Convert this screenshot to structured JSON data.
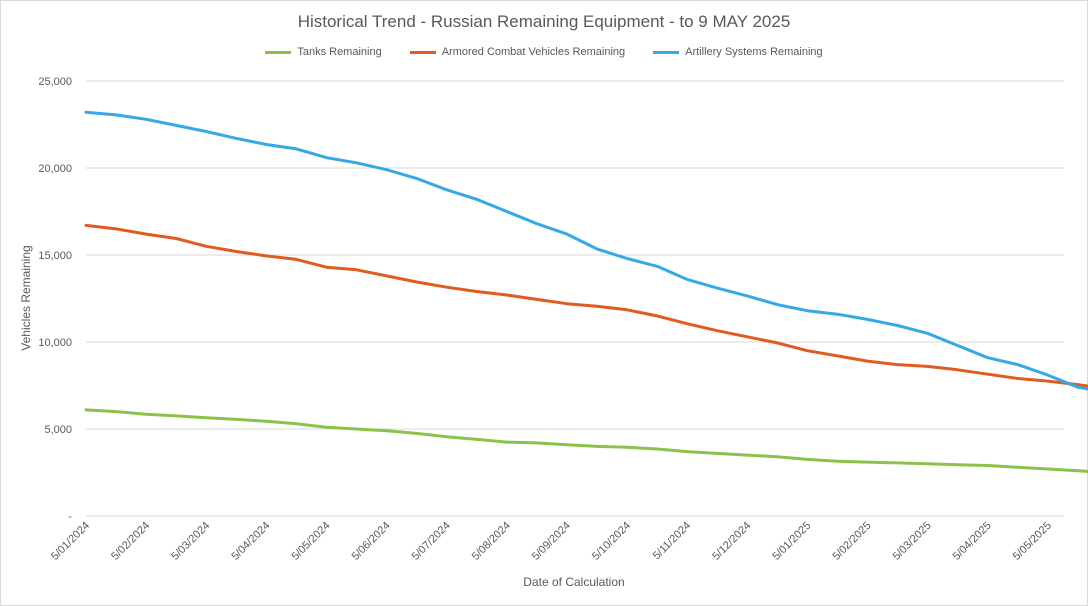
{
  "chart_data": {
    "type": "line",
    "title": "Historical Trend - Russian Remaining Equipment - to 9 MAY 2025",
    "xlabel": "Date of Calculation",
    "ylabel": "Vehicles Remaining",
    "ylim": [
      0,
      25000
    ],
    "yticks": [
      {
        "value": 0,
        "label": "-"
      },
      {
        "value": 5000,
        "label": "5,000"
      },
      {
        "value": 10000,
        "label": "10,000"
      },
      {
        "value": 15000,
        "label": "15,000"
      },
      {
        "value": 20000,
        "label": "20,000"
      },
      {
        "value": 25000,
        "label": "25,000"
      }
    ],
    "xticks": [
      "5/01/2024",
      "5/02/2024",
      "5/03/2024",
      "5/04/2024",
      "5/05/2024",
      "5/06/2024",
      "5/07/2024",
      "5/08/2024",
      "5/09/2024",
      "5/10/2024",
      "5/11/2024",
      "5/12/2024",
      "5/01/2025",
      "5/02/2025",
      "5/03/2025",
      "5/04/2025",
      "5/05/2025"
    ],
    "grid": true,
    "legend_position": "top",
    "series": [
      {
        "name": "Tanks Remaining",
        "color": "#8bc34a",
        "points": [
          [
            0,
            6100
          ],
          [
            0.5,
            6000
          ],
          [
            1,
            5850
          ],
          [
            1.5,
            5750
          ],
          [
            2,
            5650
          ],
          [
            2.5,
            5550
          ],
          [
            3,
            5450
          ],
          [
            3.5,
            5300
          ],
          [
            4,
            5100
          ],
          [
            4.5,
            5000
          ],
          [
            5,
            4900
          ],
          [
            5.5,
            4750
          ],
          [
            6,
            4550
          ],
          [
            6.5,
            4400
          ],
          [
            7,
            4250
          ],
          [
            7.5,
            4200
          ],
          [
            8,
            4100
          ],
          [
            8.5,
            4000
          ],
          [
            9,
            3950
          ],
          [
            9.5,
            3850
          ],
          [
            10,
            3700
          ],
          [
            10.5,
            3600
          ],
          [
            11,
            3500
          ],
          [
            11.5,
            3400
          ],
          [
            12,
            3250
          ],
          [
            12.5,
            3150
          ],
          [
            13,
            3100
          ],
          [
            13.5,
            3050
          ],
          [
            14,
            3000
          ],
          [
            14.5,
            2950
          ],
          [
            15,
            2900
          ],
          [
            15.5,
            2800
          ],
          [
            16,
            2700
          ],
          [
            16.5,
            2600
          ],
          [
            17,
            2500
          ],
          [
            17.5,
            2400
          ],
          [
            18,
            2300
          ],
          [
            18.5,
            2200
          ],
          [
            19,
            2150
          ],
          [
            19.27,
            2100
          ]
        ]
      },
      {
        "name": "Armored Combat Vehicles Remaining",
        "color": "#e15b1f",
        "points": [
          [
            0,
            16700
          ],
          [
            0.5,
            16500
          ],
          [
            1,
            16200
          ],
          [
            1.5,
            15950
          ],
          [
            2,
            15500
          ],
          [
            2.5,
            15200
          ],
          [
            3,
            14950
          ],
          [
            3.5,
            14750
          ],
          [
            4,
            14300
          ],
          [
            4.5,
            14150
          ],
          [
            5,
            13800
          ],
          [
            5.5,
            13450
          ],
          [
            6,
            13150
          ],
          [
            6.5,
            12900
          ],
          [
            7,
            12700
          ],
          [
            7.5,
            12450
          ],
          [
            8,
            12200
          ],
          [
            8.5,
            12050
          ],
          [
            9,
            11850
          ],
          [
            9.5,
            11500
          ],
          [
            10,
            11050
          ],
          [
            10.5,
            10650
          ],
          [
            11,
            10300
          ],
          [
            11.5,
            9950
          ],
          [
            12,
            9500
          ],
          [
            12.5,
            9200
          ],
          [
            13,
            8900
          ],
          [
            13.5,
            8700
          ],
          [
            14,
            8600
          ],
          [
            14.5,
            8400
          ],
          [
            15,
            8150
          ],
          [
            15.5,
            7900
          ],
          [
            16,
            7750
          ],
          [
            16.5,
            7550
          ],
          [
            17,
            7300
          ],
          [
            17.5,
            7100
          ],
          [
            18,
            6900
          ],
          [
            18.5,
            6800
          ],
          [
            19,
            6750
          ],
          [
            19.27,
            6750
          ]
        ]
      },
      {
        "name": "Artillery Systems Remaining",
        "color": "#34a9e6",
        "points": [
          [
            0,
            23200
          ],
          [
            0.5,
            23050
          ],
          [
            1,
            22800
          ],
          [
            1.5,
            22450
          ],
          [
            2,
            22100
          ],
          [
            2.5,
            21700
          ],
          [
            3,
            21350
          ],
          [
            3.5,
            21100
          ],
          [
            4,
            20600
          ],
          [
            4.5,
            20300
          ],
          [
            5,
            19900
          ],
          [
            5.5,
            19400
          ],
          [
            6,
            18750
          ],
          [
            6.5,
            18200
          ],
          [
            7,
            17500
          ],
          [
            7.5,
            16800
          ],
          [
            8,
            16200
          ],
          [
            8.5,
            15350
          ],
          [
            9,
            14800
          ],
          [
            9.5,
            14350
          ],
          [
            10,
            13600
          ],
          [
            10.5,
            13100
          ],
          [
            11,
            12650
          ],
          [
            11.5,
            12150
          ],
          [
            12,
            11800
          ],
          [
            12.5,
            11600
          ],
          [
            13,
            11300
          ],
          [
            13.5,
            10950
          ],
          [
            14,
            10500
          ],
          [
            14.5,
            9800
          ],
          [
            15,
            9100
          ],
          [
            15.5,
            8700
          ],
          [
            16,
            8100
          ],
          [
            16.5,
            7400
          ],
          [
            17,
            7100
          ],
          [
            17.5,
            6550
          ],
          [
            18,
            6150
          ],
          [
            18.5,
            5800
          ],
          [
            19,
            5500
          ],
          [
            19.27,
            5300
          ]
        ]
      }
    ]
  }
}
